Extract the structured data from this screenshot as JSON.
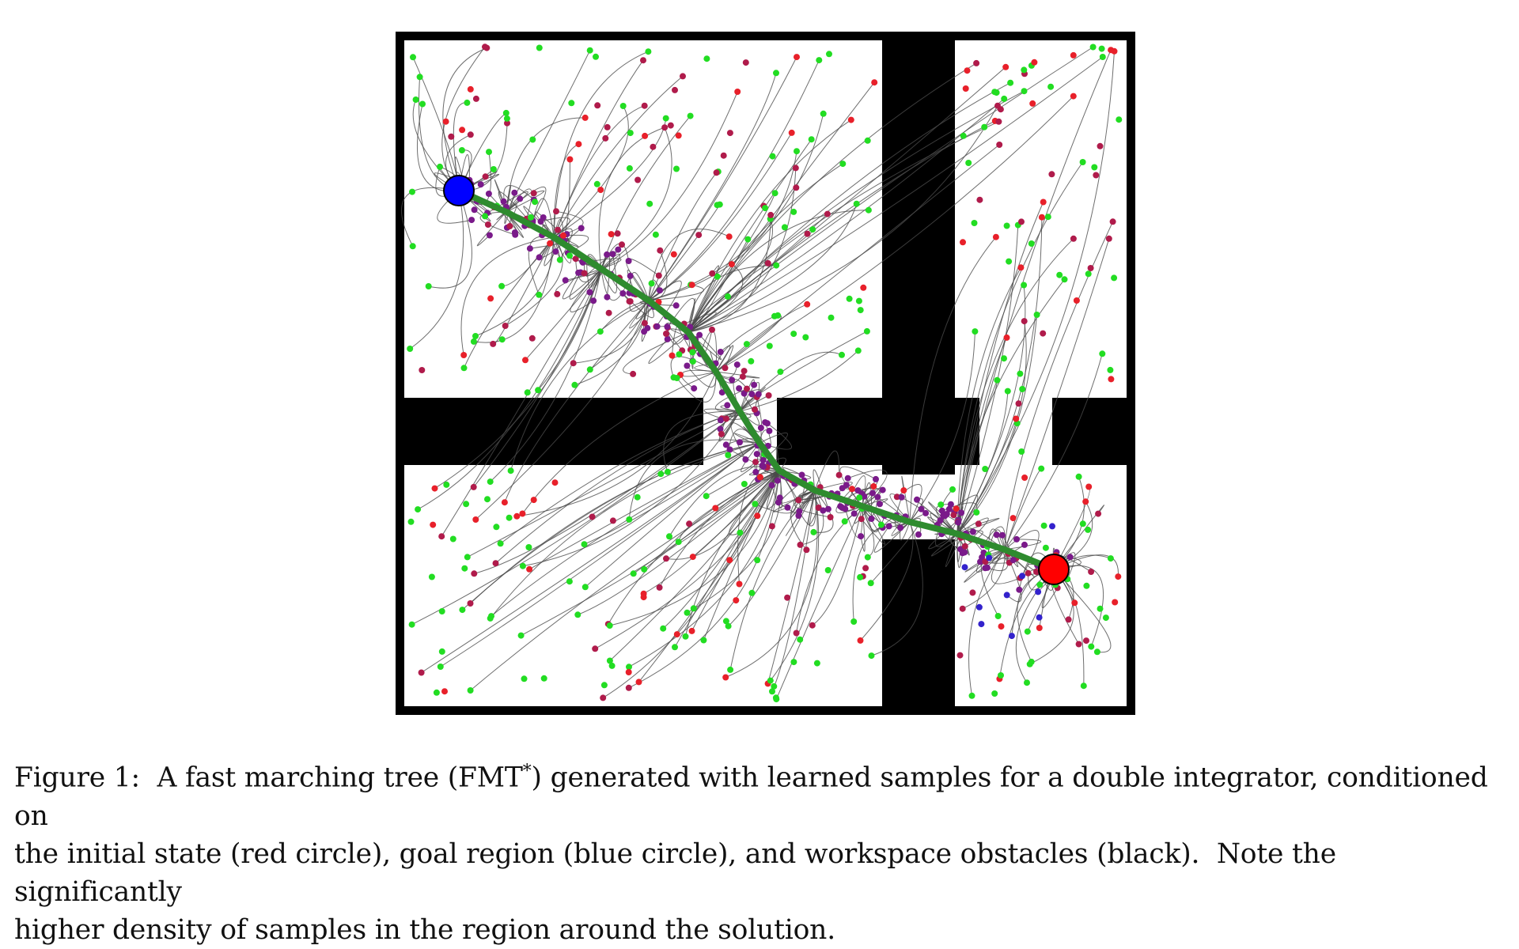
{
  "figure": {
    "caption": {
      "line1": "Figure 1:  A fast marching tree (FMT",
      "line1_sup": "*",
      "line1_rest": ") generated with learned samples for a double integrator, conditioned on",
      "line2": "the initial state (red circle), goal region (blue circle), and workspace obstacles (black).  Note the significantly",
      "line3": "higher density of samples in the region around the solution."
    },
    "colors": {
      "free_space": "#ffffff",
      "obstacle": "#000000",
      "start_circle": "#ff0000",
      "goal_circle": "#0000ff",
      "solution_path": "#2e8b2e",
      "tree_edges": "#4a4a4a",
      "sample_green": "#22dd22",
      "sample_red": "#e8202a",
      "sample_crimson": "#b01b4b",
      "sample_purple": "#7a1a8a",
      "sample_blue": "#3322cc"
    },
    "markers": {
      "start": "initial-state-circle",
      "goal": "goal-region-circle"
    }
  }
}
